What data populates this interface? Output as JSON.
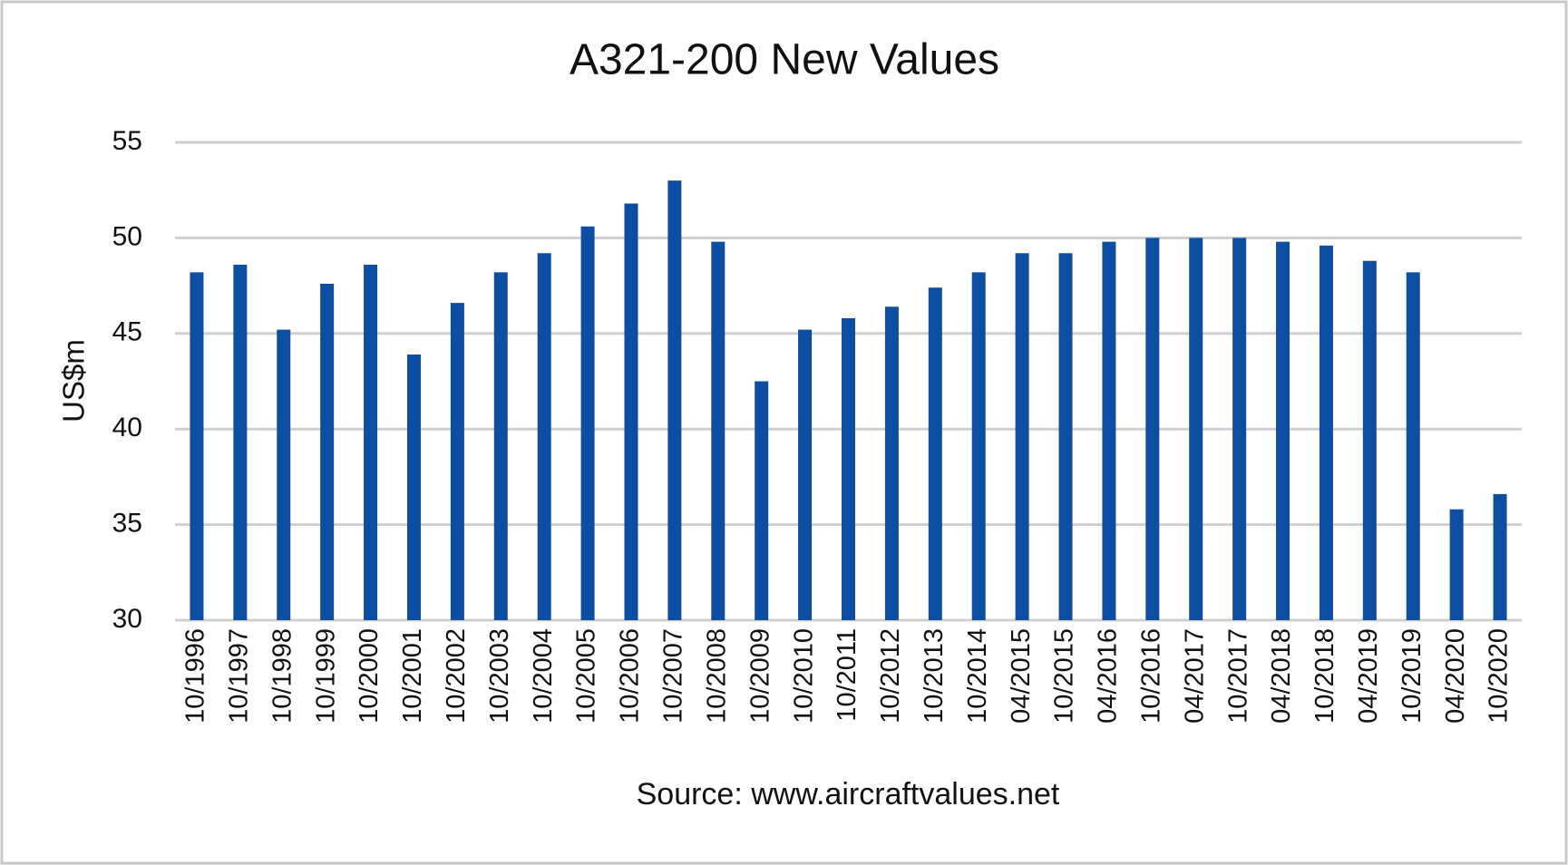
{
  "chart_data": {
    "type": "bar",
    "title": "A321-200 New Values",
    "y_label": "US$m",
    "x_label": "Source:  www.aircraftvalues.net",
    "categories": [
      "10/1996",
      "10/1997",
      "10/1998",
      "10/1999",
      "10/2000",
      "10/2001",
      "10/2002",
      "10/2003",
      "10/2004",
      "10/2005",
      "10/2006",
      "10/2007",
      "10/2008",
      "10/2009",
      "10/2010",
      "10/2011",
      "10/2012",
      "10/2013",
      "10/2014",
      "04/2015",
      "10/2015",
      "04/2016",
      "10/2016",
      "04/2017",
      "10/2017",
      "04/2018",
      "10/2018",
      "04/2019",
      "10/2019",
      "04/2020",
      "10/2020"
    ],
    "values": [
      48.2,
      48.6,
      45.2,
      47.6,
      48.6,
      43.9,
      46.6,
      48.2,
      49.2,
      50.6,
      51.8,
      53.0,
      49.8,
      42.5,
      45.2,
      45.8,
      46.4,
      47.4,
      48.2,
      49.2,
      49.2,
      49.8,
      50.0,
      50.0,
      50.0,
      49.8,
      49.6,
      48.8,
      48.2,
      35.8,
      36.6
    ],
    "color": "#0b4ea2",
    "ylim": [
      30,
      55
    ],
    "yticks": [
      30,
      35,
      40,
      45,
      50,
      55
    ],
    "grid": true
  }
}
